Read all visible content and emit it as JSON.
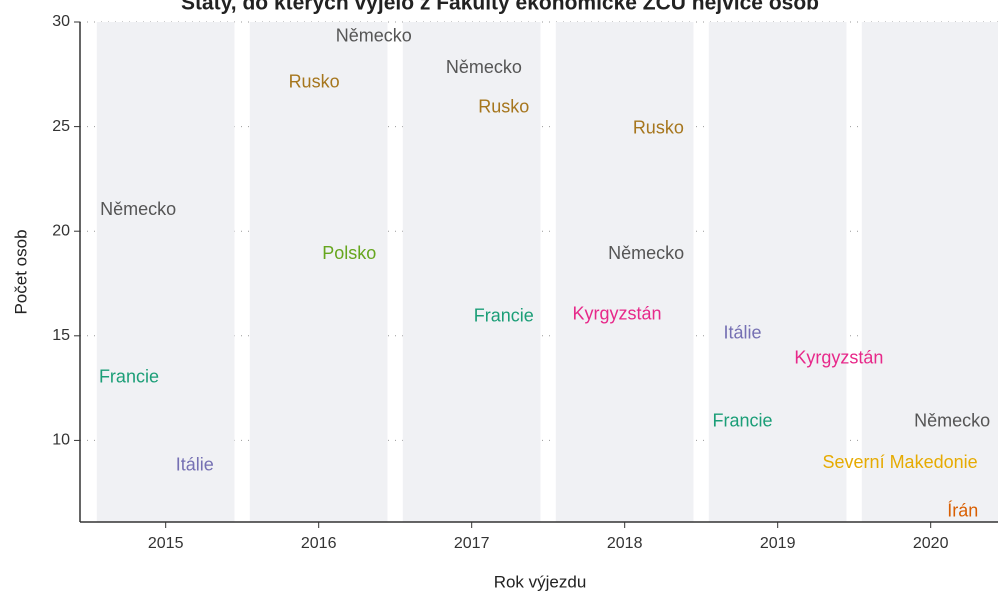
{
  "chart_data": {
    "type": "text-scatter",
    "title": "Státy, do kterých vyjelo z Fakulty ekonomické ZČU nejvíce osob",
    "x_label": "Rok výjezdu",
    "y_label": "Počet osob",
    "xlim": [
      2014.44,
      2020.44
    ],
    "ylim": [
      6.1,
      30
    ],
    "xticks": [
      2015,
      2016,
      2017,
      2018,
      2019,
      2020
    ],
    "yticks": [
      10,
      15,
      20,
      25,
      30
    ],
    "series": [
      {
        "name": "Německo",
        "color": "#555555",
        "x": [
          2014.82,
          2016.36,
          2017.08,
          2018.14,
          2020.14
        ],
        "values": [
          21.0,
          29.3,
          27.8,
          18.9,
          10.9
        ]
      },
      {
        "name": "Francie",
        "color": "#1b9e77",
        "x": [
          2014.76,
          2017.21,
          2018.77
        ],
        "values": [
          13.0,
          15.9,
          10.9
        ]
      },
      {
        "name": "Itálie",
        "color": "#7570b3",
        "x": [
          2015.19,
          2018.77
        ],
        "values": [
          8.8,
          15.1
        ]
      },
      {
        "name": "Rusko",
        "color": "#a6761d",
        "x": [
          2015.97,
          2017.21,
          2018.22
        ],
        "values": [
          27.1,
          25.9,
          24.9
        ]
      },
      {
        "name": "Polsko",
        "color": "#66a61e",
        "x": [
          2016.2
        ],
        "values": [
          18.9
        ]
      },
      {
        "name": "Kyrgyzstán",
        "color": "#e7298a",
        "x": [
          2017.95,
          2019.4
        ],
        "values": [
          16.0,
          13.9
        ]
      },
      {
        "name": "Severní Makedonie",
        "color": "#e6ab02",
        "x": [
          2019.8
        ],
        "values": [
          8.9
        ]
      },
      {
        "name": "Írán",
        "color": "#d95f02",
        "x": [
          2020.21
        ],
        "values": [
          6.6
        ]
      }
    ]
  }
}
